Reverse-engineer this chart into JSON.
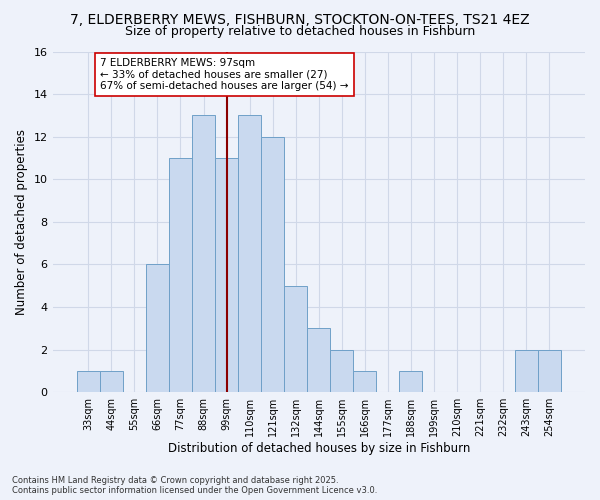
{
  "title": "7, ELDERBERRY MEWS, FISHBURN, STOCKTON-ON-TEES, TS21 4EZ",
  "subtitle": "Size of property relative to detached houses in Fishburn",
  "xlabel": "Distribution of detached houses by size in Fishburn",
  "ylabel": "Number of detached properties",
  "bin_labels": [
    "33sqm",
    "44sqm",
    "55sqm",
    "66sqm",
    "77sqm",
    "88sqm",
    "99sqm",
    "110sqm",
    "121sqm",
    "132sqm",
    "144sqm",
    "155sqm",
    "166sqm",
    "177sqm",
    "188sqm",
    "199sqm",
    "210sqm",
    "221sqm",
    "232sqm",
    "243sqm",
    "254sqm"
  ],
  "counts": [
    1,
    1,
    0,
    6,
    11,
    13,
    11,
    13,
    12,
    5,
    3,
    2,
    1,
    0,
    1,
    0,
    0,
    0,
    0,
    2,
    2
  ],
  "bar_color": "#c9d9ef",
  "bar_edge_color": "#6fa0c8",
  "vline_color": "#8b0000",
  "vline_bin": 6,
  "annotation_title": "7 ELDERBERRY MEWS: 97sqm",
  "annotation_line1": "← 33% of detached houses are smaller (27)",
  "annotation_line2": "67% of semi-detached houses are larger (54) →",
  "annotation_box_color": "#ffffff",
  "annotation_box_edge": "#cc0000",
  "footer": "Contains HM Land Registry data © Crown copyright and database right 2025.\nContains public sector information licensed under the Open Government Licence v3.0.",
  "ylim": [
    0,
    16
  ],
  "yticks": [
    0,
    2,
    4,
    6,
    8,
    10,
    12,
    14,
    16
  ],
  "grid_color": "#d0d8e8",
  "background_color": "#eef2fa",
  "title_fontsize": 10,
  "subtitle_fontsize": 9,
  "annotation_fontsize": 7.5,
  "ylabel_fontsize": 8.5,
  "xlabel_fontsize": 8.5,
  "tick_fontsize": 7,
  "footer_fontsize": 6
}
